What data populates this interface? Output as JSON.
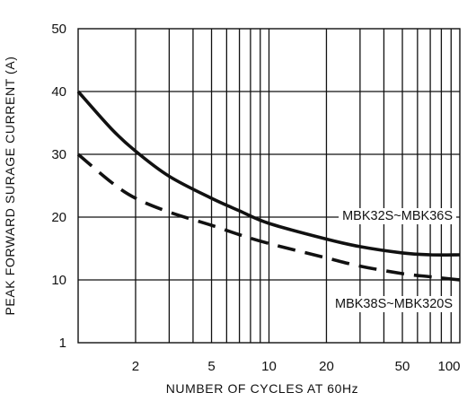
{
  "chart_data": {
    "type": "line",
    "xlabel": "NUMBER OF CYCLES AT 60Hz",
    "ylabel": "PEAK FORWARD SURAGE CURRENT (A)",
    "x_scale": "log",
    "xlim": [
      1,
      100
    ],
    "ylim": [
      0,
      50
    ],
    "x_ticks": [
      "2",
      "5",
      "10",
      "20",
      "50",
      "100"
    ],
    "y_ticks": [
      "50",
      "40",
      "30",
      "20",
      "10",
      "1"
    ],
    "grid": true,
    "series": [
      {
        "name": "MBK32S~MBK36S",
        "style": "solid",
        "x": [
          1,
          1.5,
          2,
          3,
          5,
          7,
          10,
          20,
          30,
          50,
          70,
          100
        ],
        "y": [
          40,
          34,
          30.5,
          26.5,
          23,
          21,
          19,
          16.5,
          15.3,
          14.3,
          14,
          14
        ]
      },
      {
        "name": "MBK38S~MBK320S",
        "style": "dashed",
        "x": [
          1,
          1.5,
          2,
          3,
          5,
          7,
          10,
          20,
          30,
          50,
          70,
          100
        ],
        "y": [
          30,
          25.5,
          23,
          20.8,
          18.7,
          17.2,
          15.8,
          13.5,
          12.2,
          11,
          10.5,
          10
        ]
      }
    ]
  }
}
